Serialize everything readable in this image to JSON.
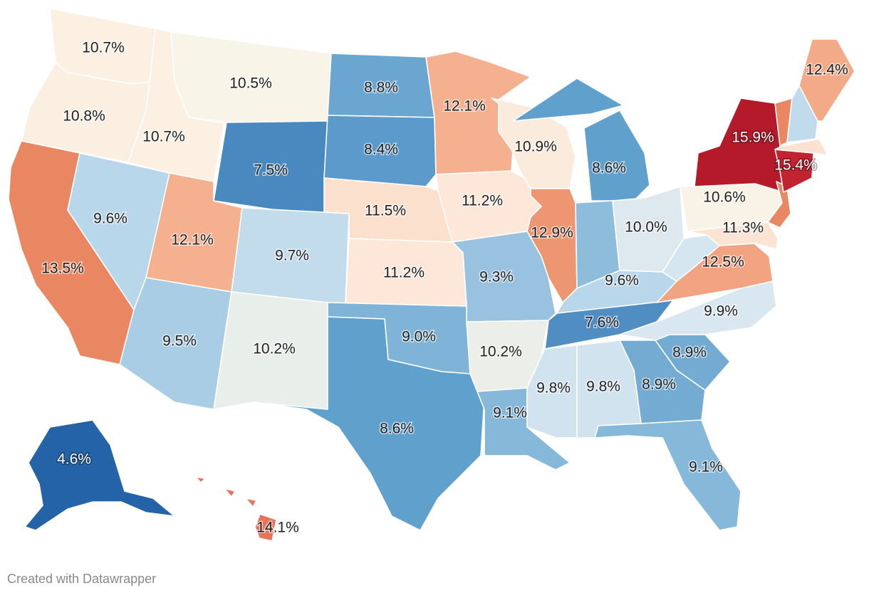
{
  "credit": "Created with Datawrapper",
  "legend_colors": {
    "very_low": "#2463a8",
    "low": "#4a89c0",
    "mid_low": "#65a3ce",
    "light_blue": "#a9cde4",
    "pale_blue": "#d4e6f1",
    "neutral": "#f7f4ea",
    "pale_orange": "#fbe3d2",
    "light_orange": "#f6b190",
    "orange": "#ea8763",
    "coral": "#e6735a",
    "dark_red": "#b51a2b"
  },
  "states": [
    {
      "id": "WA",
      "value": "10.7%",
      "color": "#fbf0e2"
    },
    {
      "id": "OR",
      "value": "10.8%",
      "color": "#fbefe1"
    },
    {
      "id": "CA",
      "value": "13.5%",
      "color": "#ea8763"
    },
    {
      "id": "NV",
      "value": "9.6%",
      "color": "#b9d7ea"
    },
    {
      "id": "ID",
      "value": "10.7%",
      "color": "#fbf0e2"
    },
    {
      "id": "MT",
      "value": "10.5%",
      "color": "#f8f4e8"
    },
    {
      "id": "WY",
      "value": "7.5%",
      "color": "#4a89c0"
    },
    {
      "id": "UT",
      "value": "12.1%",
      "color": "#f4b08f"
    },
    {
      "id": "AZ",
      "value": "9.5%",
      "color": "#a9cde4"
    },
    {
      "id": "CO",
      "value": "9.7%",
      "color": "#c2dcec"
    },
    {
      "id": "NM",
      "value": "10.2%",
      "color": "#e8eeea"
    },
    {
      "id": "ND",
      "value": "8.8%",
      "color": "#6aa6cf"
    },
    {
      "id": "SD",
      "value": "8.4%",
      "color": "#5b9acb"
    },
    {
      "id": "NE",
      "value": "11.5%",
      "color": "#fbe0cd"
    },
    {
      "id": "KS",
      "value": "11.2%",
      "color": "#fce7d8"
    },
    {
      "id": "OK",
      "value": "9.0%",
      "color": "#7fb4d8"
    },
    {
      "id": "TX",
      "value": "8.6%",
      "color": "#60a0cd"
    },
    {
      "id": "MN",
      "value": "12.1%",
      "color": "#f4b08f"
    },
    {
      "id": "IA",
      "value": "11.2%",
      "color": "#fce7d8"
    },
    {
      "id": "MO",
      "value": "9.3%",
      "color": "#98c2df"
    },
    {
      "id": "AR",
      "value": "10.2%",
      "color": "#eceee9"
    },
    {
      "id": "LA",
      "value": "9.1%",
      "color": "#86b8da"
    },
    {
      "id": "WI",
      "value": "10.9%",
      "color": "#fbebdd"
    },
    {
      "id": "IL",
      "value": "12.9%",
      "color": "#ee9672"
    },
    {
      "id": "MI",
      "value": "8.6%",
      "color": "#60a0cd"
    },
    {
      "id": "IN",
      "value": "",
      "color": "#8ebddc"
    },
    {
      "id": "OH",
      "value": "10.0%",
      "color": "#dee9ef"
    },
    {
      "id": "KY",
      "value": "9.6%",
      "color": "#b9d7ea"
    },
    {
      "id": "TN",
      "value": "7.6%",
      "color": "#4f8dc3"
    },
    {
      "id": "MS",
      "value": "9.8%",
      "color": "#d1e3ef"
    },
    {
      "id": "AL",
      "value": "9.8%",
      "color": "#d1e3ef"
    },
    {
      "id": "GA",
      "value": "8.9%",
      "color": "#73abd3"
    },
    {
      "id": "FL",
      "value": "9.1%",
      "color": "#86b8da"
    },
    {
      "id": "SC",
      "value": "8.9%",
      "color": "#73abd3"
    },
    {
      "id": "NC",
      "value": "9.9%",
      "color": "#d8e7f0"
    },
    {
      "id": "VA",
      "value": "12.5%",
      "color": "#f2a482"
    },
    {
      "id": "WV",
      "value": "",
      "color": "#d6e6f0"
    },
    {
      "id": "PA",
      "value": "10.6%",
      "color": "#f8f3e6"
    },
    {
      "id": "NY",
      "value": "15.9%",
      "color": "#b51a2b"
    },
    {
      "id": "NJ",
      "value": "",
      "color": "#ea8763"
    },
    {
      "id": "MD",
      "value": "11.3%",
      "color": "#fbe4d3"
    },
    {
      "id": "CT",
      "value": "15.4%",
      "color": "#c12330"
    },
    {
      "id": "MA",
      "value": "",
      "color": "#fbe1cf"
    },
    {
      "id": "VT",
      "value": "",
      "color": "#ea8763"
    },
    {
      "id": "NH",
      "value": "",
      "color": "#bfdbec"
    },
    {
      "id": "ME",
      "value": "12.4%",
      "color": "#f3aa88"
    },
    {
      "id": "AK",
      "value": "4.6%",
      "color": "#2463a8"
    },
    {
      "id": "HI",
      "value": "14.1%",
      "color": "#e6735a"
    }
  ]
}
